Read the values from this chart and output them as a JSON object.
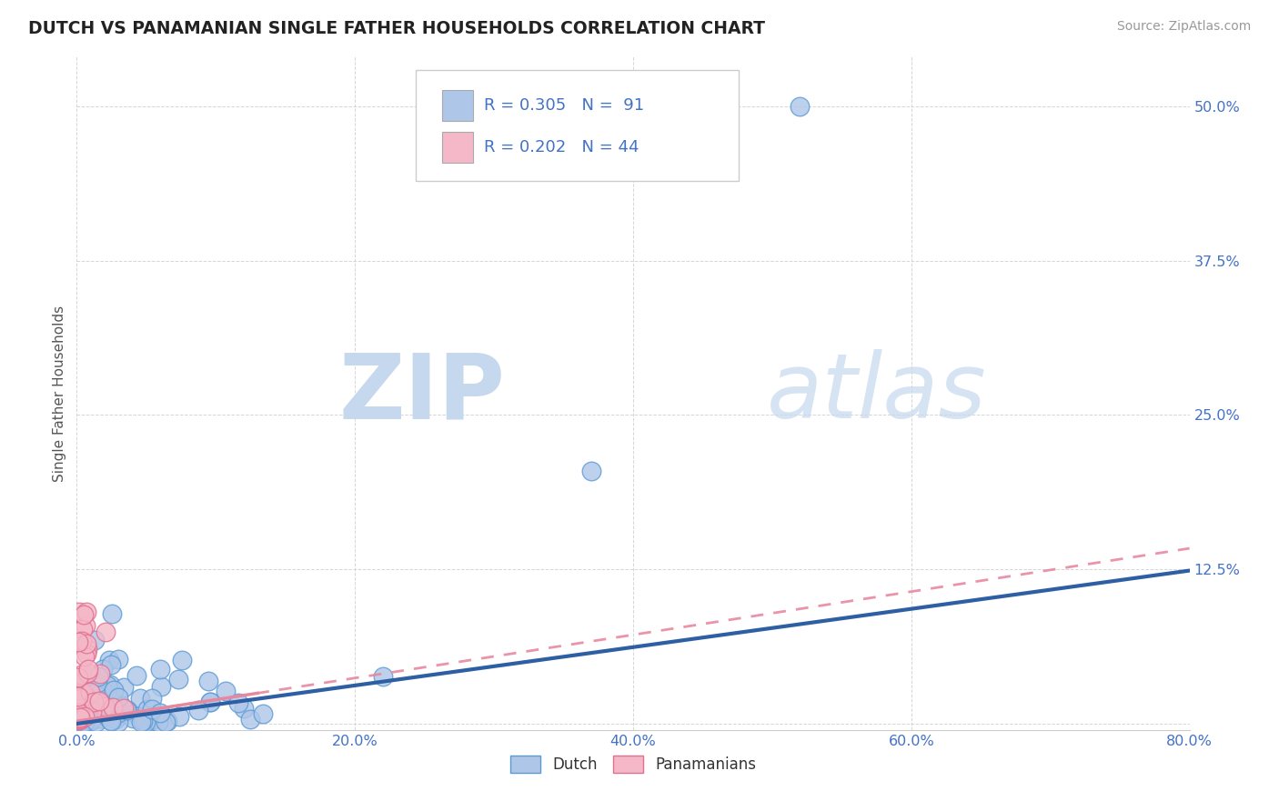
{
  "title": "DUTCH VS PANAMANIAN SINGLE FATHER HOUSEHOLDS CORRELATION CHART",
  "source": "Source: ZipAtlas.com",
  "ylabel": "Single Father Households",
  "xlim": [
    0.0,
    0.8
  ],
  "ylim": [
    -0.005,
    0.54
  ],
  "xtick_vals": [
    0.0,
    0.2,
    0.4,
    0.6,
    0.8
  ],
  "xtick_labels": [
    "0.0%",
    "20.0%",
    "40.0%",
    "60.0%",
    "80.0%"
  ],
  "ytick_vals": [
    0.0,
    0.125,
    0.25,
    0.375,
    0.5
  ],
  "ytick_labels": [
    "",
    "12.5%",
    "25.0%",
    "37.5%",
    "50.0%"
  ],
  "dutch_color": "#aec6e8",
  "dutch_edge": "#5b9bd5",
  "panama_color": "#f4b8c8",
  "panama_edge": "#e07090",
  "trend_dutch_color": "#2e5fa3",
  "trend_panama_color": "#e888a0",
  "trend_dutch_intercept": 0.0,
  "trend_dutch_slope": 0.155,
  "trend_panama_intercept": 0.002,
  "trend_panama_slope": 0.175,
  "legend_R_dutch": "R = 0.305",
  "legend_N_dutch": "N =  91",
  "legend_R_panama": "R = 0.202",
  "legend_N_panama": "N = 44",
  "watermark_zip": "ZIP",
  "watermark_atlas": "atlas",
  "bottom_label_dutch": "Dutch",
  "bottom_label_panama": "Panamanians"
}
